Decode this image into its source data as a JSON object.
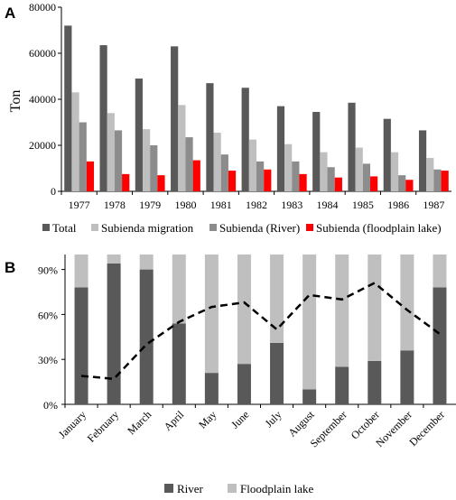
{
  "chart_data": [
    {
      "type": "bar",
      "panel_label": "A",
      "title": "",
      "xlabel": "",
      "ylabel": "Ton",
      "ylim": [
        0,
        80000
      ],
      "yticks": [
        "0",
        "20000",
        "40000",
        "60000",
        "80000"
      ],
      "categories": [
        "1977",
        "1978",
        "1979",
        "1980",
        "1981",
        "1982",
        "1983",
        "1984",
        "1985",
        "1986",
        "1987"
      ],
      "series": [
        {
          "name": "Total",
          "color": "#595959",
          "values": [
            72000,
            63500,
            49000,
            63000,
            47000,
            45000,
            37000,
            34500,
            38500,
            31500,
            26500
          ]
        },
        {
          "name": "Subienda migration",
          "color": "#bfbfbf",
          "values": [
            43000,
            34000,
            27000,
            37500,
            25500,
            22500,
            20500,
            17000,
            19000,
            17000,
            14500
          ]
        },
        {
          "name": "Subienda (River)",
          "color": "#8c8c8c",
          "values": [
            30000,
            26500,
            20000,
            23500,
            16000,
            13000,
            13000,
            10500,
            12000,
            7000,
            9500
          ]
        },
        {
          "name": "Subienda (floodplain lake)",
          "color": "#ff0000",
          "values": [
            13000,
            7500,
            7000,
            13500,
            9000,
            9500,
            7500,
            6000,
            6500,
            5000,
            9000
          ]
        }
      ],
      "legend_position": "bottom",
      "grid": false
    },
    {
      "type": "bar",
      "stacked": true,
      "panel_label": "B",
      "title": "",
      "xlabel": "",
      "ylabel": "",
      "ylim": [
        0,
        100
      ],
      "yticks": [
        "0%",
        "30%",
        "60%",
        "90%"
      ],
      "categories": [
        "January",
        "February",
        "March",
        "April",
        "May",
        "June",
        "July",
        "August",
        "September",
        "October",
        "November",
        "December"
      ],
      "series": [
        {
          "name": "River",
          "color": "#595959",
          "values": [
            78,
            94,
            90,
            54,
            21,
            27,
            41,
            10,
            25,
            29,
            36,
            78
          ]
        },
        {
          "name": "Floodplain lake",
          "color": "#bfbfbf",
          "values": [
            22,
            6,
            10,
            46,
            79,
            73,
            59,
            90,
            75,
            71,
            64,
            22
          ]
        }
      ],
      "overlay_line": {
        "style": "dashed",
        "color": "#000000",
        "values": [
          19,
          17,
          40,
          55,
          65,
          68,
          50,
          73,
          70,
          81,
          63,
          47
        ]
      },
      "legend_position": "bottom",
      "grid": false
    }
  ]
}
